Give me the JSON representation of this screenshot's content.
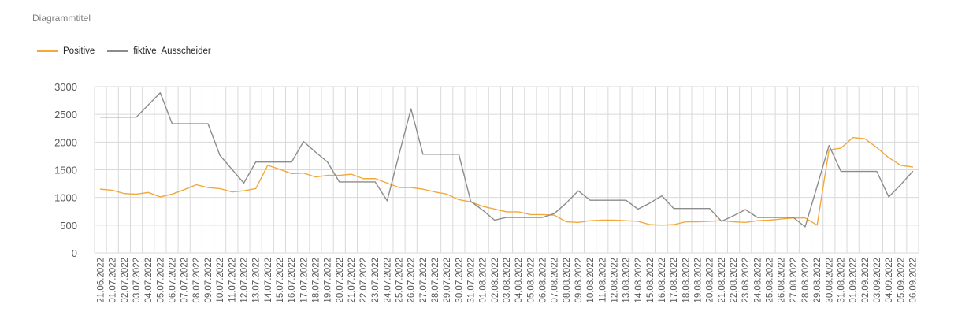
{
  "chart_data": {
    "type": "line",
    "title": "Diagrammtitel",
    "xlabel": "",
    "ylabel": "",
    "ylim": [
      0,
      3000
    ],
    "yticks": [
      0,
      500,
      1000,
      1500,
      2000,
      2500,
      3000
    ],
    "grid": true,
    "legend": "top-left",
    "categories": [
      "21.06.2022",
      "01.07.2022",
      "02.07.2022",
      "03.07.2022",
      "04.07.2022",
      "05.07.2022",
      "06.07.2022",
      "07.07.2022",
      "08.07.2022",
      "09.07.2022",
      "10.07.2022",
      "11.07.2022",
      "12.07.2022",
      "13.07.2022",
      "14.07.2022",
      "15.07.2022",
      "16.07.2022",
      "17.07.2022",
      "18.07.2022",
      "19.07.2022",
      "20.07.2022",
      "21.07.2022",
      "22.07.2022",
      "23.07.2022",
      "24.07.2022",
      "25.07.2022",
      "26.07.2022",
      "27.07.2022",
      "28.07.2022",
      "29.07.2022",
      "30.07.2022",
      "31.07.2022",
      "01.08.2022",
      "02.08.2022",
      "03.08.2022",
      "04.08.2022",
      "05.08.2022",
      "06.08.2022",
      "07.08.2022",
      "08.08.2022",
      "09.08.2022",
      "10.08.2022",
      "11.08.2022",
      "12.08.2022",
      "13.08.2022",
      "14.08.2022",
      "15.08.2022",
      "16.08.2022",
      "17.08.2022",
      "18.08.2022",
      "19.08.2022",
      "20.08.2022",
      "21.08.2022",
      "22.08.2022",
      "23.08.2022",
      "24.08.2022",
      "25.08.2022",
      "26.08.2022",
      "27.08.2022",
      "28.08.2022",
      "29.08.2022",
      "30.08.2022",
      "31.08.2022",
      "01.09.2022",
      "02.09.2022",
      "03.09.2022",
      "04.09.2022",
      "05.09.2022",
      "06.09.2022"
    ],
    "series": [
      {
        "name": "Positive",
        "color": "#F2A93B",
        "values": [
          1150,
          1130,
          1070,
          1060,
          1090,
          1010,
          1060,
          1140,
          1230,
          1180,
          1160,
          1100,
          1120,
          1160,
          1580,
          1510,
          1430,
          1440,
          1370,
          1400,
          1400,
          1420,
          1340,
          1340,
          1260,
          1180,
          1180,
          1150,
          1100,
          1060,
          960,
          920,
          840,
          790,
          740,
          740,
          690,
          690,
          680,
          560,
          550,
          580,
          590,
          590,
          580,
          570,
          510,
          500,
          510,
          560,
          560,
          570,
          580,
          560,
          550,
          580,
          590,
          610,
          630,
          630,
          500,
          1860,
          1890,
          2080,
          2060,
          1900,
          1720,
          1580,
          1550
        ]
      },
      {
        "name": "fiktive  Ausscheider",
        "color": "#8C8C8C",
        "values": [
          2450,
          2450,
          2450,
          2450,
          2670,
          2890,
          2330,
          2330,
          2330,
          2330,
          1760,
          1510,
          1260,
          1640,
          1640,
          1640,
          1640,
          2010,
          1820,
          1640,
          1280,
          1280,
          1280,
          1280,
          940,
          1780,
          2600,
          1780,
          1780,
          1780,
          1780,
          930,
          770,
          590,
          640,
          640,
          640,
          640,
          710,
          900,
          1120,
          950,
          950,
          950,
          950,
          790,
          900,
          1030,
          800,
          800,
          800,
          800,
          570,
          670,
          780,
          640,
          640,
          640,
          640,
          470,
          1200,
          1940,
          1470,
          1470,
          1470,
          1470,
          1010,
          1230,
          1470
        ]
      }
    ]
  }
}
